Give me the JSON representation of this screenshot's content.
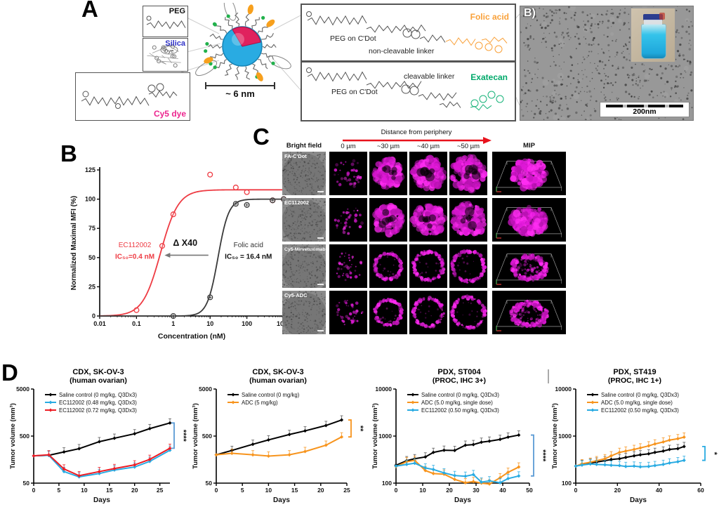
{
  "panel_a": {
    "label": "A",
    "peg_label": "PEG",
    "silica_label": "Silica",
    "dye_label": "Dye",
    "cy5_label": "Cy5 dye",
    "scale_bar_label": "~ 6 nm",
    "conjugates": [
      {
        "base": "PEG on C'Dot",
        "linker": "non-cleavable linker",
        "payload": "Folic acid"
      },
      {
        "base": "PEG on C'Dot",
        "linker": "cleavable linker",
        "payload": "Exatecan"
      }
    ],
    "tem": {
      "label": "B)",
      "scale_bar": "200nm"
    }
  },
  "panel_b": {
    "label": "B"
  },
  "panel_c": {
    "label": "C",
    "arrow_label": "Distance from periphery",
    "columns": [
      "Bright field",
      "0 µm",
      "~30 µm",
      "~40 µm",
      "~50 µm",
      "MIP"
    ],
    "rows": [
      {
        "label": "FA-C'Dot",
        "pattern": "filled"
      },
      {
        "label": "EC112002",
        "pattern": "filled"
      },
      {
        "label": "Cy5-Mirvetuximab",
        "pattern": "ring"
      },
      {
        "label": "Cy5-ADC",
        "pattern": "ring"
      }
    ]
  },
  "panel_d": {
    "label": "D"
  },
  "colors": {
    "magenta": "#e61ce6",
    "red": "#ee3b43",
    "blue": "#29abe2",
    "orange": "#f7941d",
    "folic_orange": "#f9a13a",
    "exatecan_green": "#00a96a",
    "silica_blue": "#2e31c8",
    "cy5_pink": "#ec268f",
    "sig_blue": "#5b9bd5"
  },
  "chart_data": [
    {
      "id": "dose",
      "type": "scatter",
      "xlabel": "Concentration (nM)",
      "ylabel": "Normalized Maximal MFI (%)",
      "xscale": "log",
      "xlim": [
        0.01,
        1000
      ],
      "xticks": [
        "0.01",
        "0.1",
        "1",
        "10",
        "100",
        "1000"
      ],
      "ylim": [
        0,
        125
      ],
      "yticks": [
        0,
        25,
        50,
        75,
        100,
        125
      ],
      "series": [
        {
          "name": "EC112002",
          "color": "#ee3b43",
          "marker": "circle",
          "points_x": [
            0.1,
            0.5,
            1,
            10,
            50,
            100,
            500,
            1000
          ],
          "points_y": [
            5,
            60,
            87,
            121,
            110,
            106,
            99,
            100
          ],
          "curve": {
            "top": 108,
            "ec50": 0.45,
            "hill": 1.8
          }
        },
        {
          "name": "Folic acid",
          "color": "#3a3a3a",
          "marker": "circle-plus",
          "points_x": [
            1,
            10,
            50,
            100,
            500,
            1000
          ],
          "points_y": [
            0,
            16,
            96,
            95,
            99,
            100
          ],
          "curve": {
            "top": 100,
            "ec50": 16.4,
            "hill": 3.0
          }
        }
      ],
      "annotations": [
        {
          "text": "EC112002",
          "x": 0.09,
          "y": 59,
          "color": "#ee3b43",
          "bold": false,
          "size": 10
        },
        {
          "text": "IC₅₀=0.4 nM",
          "x": 0.09,
          "y": 49,
          "color": "#ee3b43",
          "bold": true,
          "size": 10
        },
        {
          "text": "Δ X40",
          "x": 2.1,
          "y": 60,
          "color": "#111111",
          "bold": true,
          "size": 12.5
        },
        {
          "text": "Folic acid",
          "x": 110,
          "y": 59,
          "color": "#333333",
          "bold": false,
          "size": 10
        },
        {
          "text": "IC₅₀ = 16.4 nM",
          "x": 110,
          "y": 49,
          "color": "#111111",
          "bold": true,
          "size": 10
        }
      ],
      "arrow": {
        "x1": 9,
        "x2": 0.58,
        "y": 52
      }
    },
    {
      "id": "d1",
      "type": "line",
      "title": "CDX, SK-OV-3",
      "subtitle": "(human ovarian)",
      "xlabel": "Days",
      "ylabel": "Tumor volume (mm³)",
      "xlim": [
        0,
        27
      ],
      "xticks": [
        0,
        5,
        10,
        15,
        20,
        25
      ],
      "yscale": "log",
      "ylim": [
        50,
        5000
      ],
      "yticks": [
        50,
        500,
        5000
      ],
      "significance": "****",
      "sig_color": "#5b9bd5",
      "series": [
        {
          "name": "Saline control (0 mg/kg, Q3Dx3)",
          "color": "#000000",
          "x": [
            0,
            3,
            6,
            9,
            13,
            16,
            20,
            23,
            27
          ],
          "y": [
            190,
            195,
            230,
            270,
            380,
            450,
            560,
            720,
            950
          ]
        },
        {
          "name": "EC112002 (0.48 mg/kg, Q3Dx3)",
          "color": "#29abe2",
          "x": [
            0,
            3,
            6,
            9,
            13,
            16,
            20,
            23,
            27
          ],
          "y": [
            190,
            195,
            88,
            68,
            80,
            95,
            110,
            145,
            250
          ]
        },
        {
          "name": "EC112002 (0.72 mg/kg, Q3Dx3)",
          "color": "#ed1c24",
          "x": [
            0,
            3,
            6,
            9,
            13,
            16,
            20,
            23,
            27
          ],
          "y": [
            190,
            200,
            100,
            72,
            88,
            102,
            122,
            160,
            275
          ]
        }
      ]
    },
    {
      "id": "d2",
      "type": "line",
      "title": "CDX, SK-OV-3",
      "subtitle": "(human ovarian)",
      "xlabel": "Days",
      "ylabel": "Tumor volume (mm³)",
      "xlim": [
        0,
        25
      ],
      "xticks": [
        0,
        5,
        10,
        15,
        20,
        25
      ],
      "yscale": "log",
      "ylim": [
        50,
        5000
      ],
      "yticks": [
        50,
        500,
        5000
      ],
      "significance": "**",
      "sig_color": "#f7941d",
      "series": [
        {
          "name": "Saline control (0 mg/kg)",
          "color": "#000000",
          "x": [
            0,
            3,
            7,
            10,
            14,
            17,
            21,
            24
          ],
          "y": [
            200,
            248,
            335,
            415,
            540,
            645,
            840,
            1100
          ]
        },
        {
          "name": "ADC (5 mg/kg)",
          "color": "#f7941d",
          "x": [
            0,
            3,
            7,
            10,
            14,
            17,
            21,
            24
          ],
          "y": [
            200,
            215,
            200,
            188,
            200,
            235,
            320,
            480
          ]
        }
      ]
    },
    {
      "id": "d3",
      "type": "line",
      "title": "PDX, ST004",
      "subtitle": "(PROC, IHC 3+)",
      "xlabel": "Days",
      "ylabel": "Tumor volume (mm³)",
      "xlim": [
        0,
        50
      ],
      "xticks": [
        0,
        10,
        20,
        30,
        40,
        50
      ],
      "yscale": "log",
      "ylim": [
        100,
        10000
      ],
      "yticks": [
        100,
        1000,
        10000
      ],
      "significance": "****",
      "sig_color": "#5b9bd5",
      "series": [
        {
          "name": "Saline control (0 mg/kg, Q3Dx3)",
          "color": "#000000",
          "x": [
            0,
            4,
            7,
            11,
            14,
            18,
            22,
            26,
            29,
            32,
            35,
            39,
            42,
            46
          ],
          "y": [
            240,
            300,
            330,
            360,
            450,
            500,
            495,
            640,
            660,
            740,
            780,
            850,
            950,
            1050
          ]
        },
        {
          "name": "ADC (5.0 mg/kg, single dose)",
          "color": "#f7941d",
          "x": [
            0,
            4,
            7,
            11,
            14,
            18,
            22,
            26,
            29,
            32,
            35,
            39,
            42,
            46
          ],
          "y": [
            225,
            285,
            305,
            185,
            160,
            155,
            120,
            102,
            108,
            100,
            96,
            130,
            170,
            220
          ]
        },
        {
          "name": "EC112002 (0.50 mg/kg, Q3Dx3)",
          "color": "#29abe2",
          "x": [
            0,
            4,
            7,
            11,
            14,
            18,
            22,
            26,
            29,
            32,
            35,
            39,
            42,
            46
          ],
          "y": [
            230,
            250,
            265,
            210,
            195,
            165,
            145,
            140,
            152,
            105,
            112,
            102,
            125,
            142
          ]
        }
      ]
    },
    {
      "id": "d4",
      "type": "line",
      "title": "PDX, ST419",
      "subtitle": "(PROC, IHC 1+)",
      "xlabel": "Days",
      "ylabel": "Tumor volume (mm³)",
      "xlim": [
        0,
        60
      ],
      "xticks": [
        0,
        20,
        40,
        60
      ],
      "yscale": "log",
      "ylim": [
        100,
        10000
      ],
      "yticks": [
        100,
        1000,
        10000
      ],
      "significance": "*",
      "sig_color": "#29abe2",
      "series": [
        {
          "name": "Saline control (0 mg/kg, Q3Dx3)",
          "color": "#000000",
          "x": [
            0,
            3,
            7,
            10,
            14,
            17,
            21,
            24,
            28,
            31,
            35,
            38,
            42,
            45,
            49,
            52
          ],
          "y": [
            230,
            250,
            268,
            280,
            300,
            318,
            330,
            352,
            380,
            400,
            420,
            450,
            480,
            520,
            540,
            600
          ]
        },
        {
          "name": "ADC (5.0 mg/kg, single dose)",
          "color": "#f7941d",
          "x": [
            0,
            3,
            7,
            10,
            14,
            17,
            21,
            24,
            28,
            31,
            35,
            38,
            42,
            45,
            49,
            52
          ],
          "y": [
            230,
            258,
            278,
            300,
            330,
            380,
            450,
            480,
            520,
            560,
            620,
            680,
            750,
            820,
            880,
            950
          ]
        },
        {
          "name": "EC112002 (0.50 mg/kg, Q3Dx3)",
          "color": "#29abe2",
          "x": [
            0,
            3,
            7,
            10,
            14,
            17,
            21,
            24,
            28,
            31,
            35,
            38,
            42,
            45,
            49,
            52
          ],
          "y": [
            230,
            242,
            255,
            250,
            245,
            240,
            236,
            226,
            230,
            222,
            226,
            236,
            250,
            268,
            285,
            305
          ]
        }
      ]
    }
  ]
}
